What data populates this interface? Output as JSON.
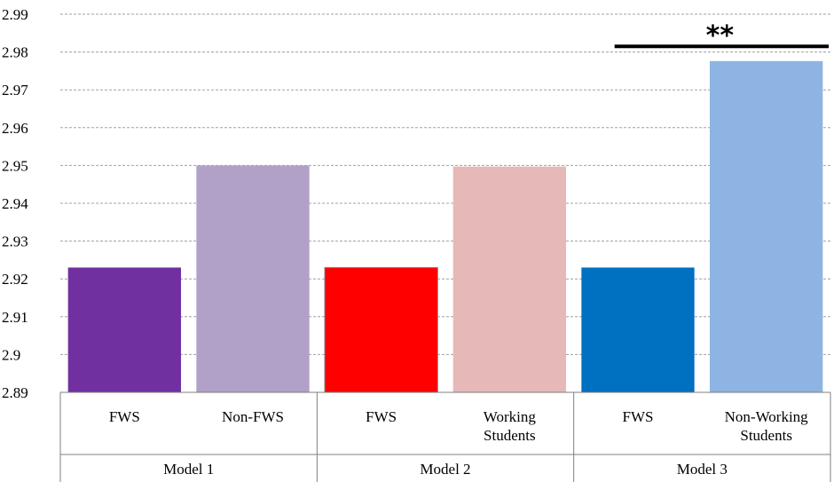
{
  "chart_data": {
    "type": "bar",
    "title": "",
    "xlabel": "",
    "ylabel": "",
    "ylim": [
      2.89,
      2.99
    ],
    "yticks": [
      "2.89",
      "2.9",
      "2.91",
      "2.92",
      "2.93",
      "2.94",
      "2.95",
      "2.96",
      "2.97",
      "2.98",
      "2.99"
    ],
    "grid": true,
    "groups": [
      {
        "label": "Model 1",
        "bars": [
          {
            "label": [
              "FWS"
            ],
            "value": 2.923,
            "color": "#7030a0"
          },
          {
            "label": [
              "Non-FWS"
            ],
            "value": 2.95,
            "color": "#b1a0c7"
          }
        ]
      },
      {
        "label": "Model 2",
        "bars": [
          {
            "label": [
              "FWS"
            ],
            "value": 2.923,
            "color": "#ff0000"
          },
          {
            "label": [
              "Working",
              "Students"
            ],
            "value": 2.9497,
            "color": "#e6b8b7"
          }
        ]
      },
      {
        "label": "Model 3",
        "bars": [
          {
            "label": [
              "FWS"
            ],
            "value": 2.923,
            "color": "#0070c0"
          },
          {
            "label": [
              "Non-Working",
              "Students"
            ],
            "value": 2.9776,
            "color": "#8db4e2"
          }
        ]
      }
    ],
    "annotations": [
      {
        "text": "**",
        "group": 2,
        "line_value": 2.9815,
        "color": "#000000"
      }
    ]
  }
}
